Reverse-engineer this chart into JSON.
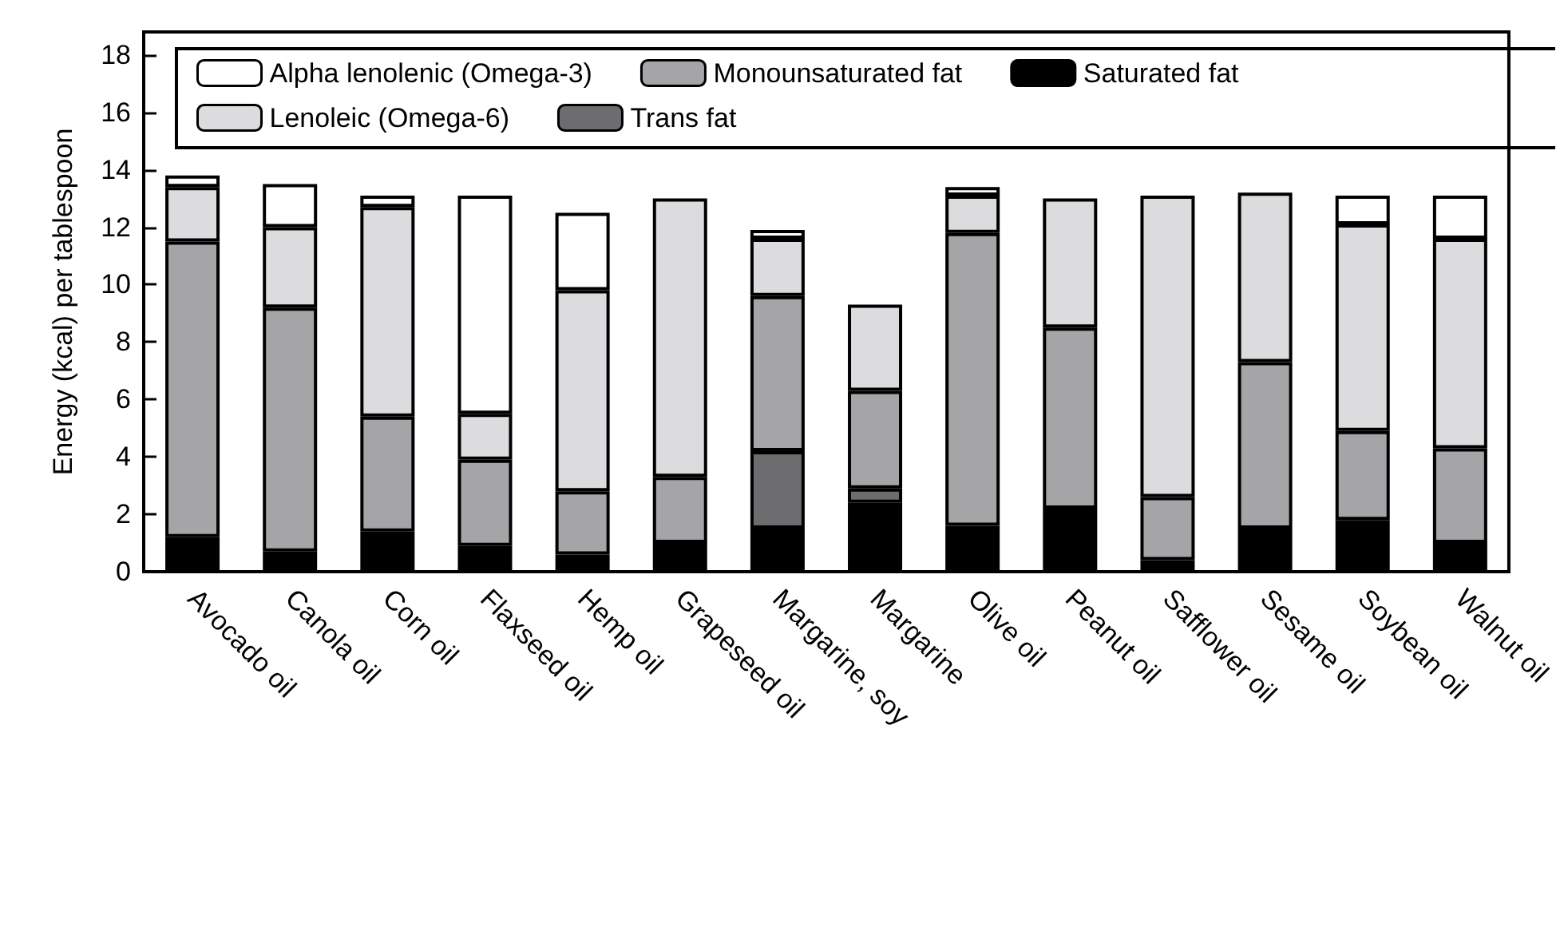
{
  "chart_data": {
    "type": "bar",
    "stacked": true,
    "ylabel": "Energy (kcal) per tablespoon",
    "categories": [
      "Avocado oil",
      "Canola oil",
      "Corn oil",
      "Flaxseed oil",
      "Hemp oil",
      "Grapeseed oil",
      "Margarine, soy",
      "Margarine",
      "Olive oil",
      "Peanut oil",
      "Safflower oil",
      "Sesame oil",
      "Soybean oil",
      "Walnut oil"
    ],
    "series": [
      {
        "name": "Saturated fat",
        "color": "#000000",
        "values": [
          1.2,
          0.7,
          1.4,
          0.9,
          0.6,
          1.0,
          1.5,
          2.4,
          1.6,
          2.2,
          0.4,
          1.5,
          1.8,
          1.0
        ]
      },
      {
        "name": "Trans fat",
        "color": "#6d6d6f",
        "values": [
          null,
          null,
          null,
          null,
          null,
          null,
          2.7,
          0.5,
          null,
          null,
          null,
          null,
          null,
          null
        ]
      },
      {
        "name": "Monounsaturated fat",
        "color": "#a5a5a8",
        "values": [
          10.3,
          8.5,
          4.0,
          3.0,
          2.2,
          2.3,
          5.4,
          3.4,
          10.2,
          6.3,
          2.2,
          5.8,
          3.1,
          3.3
        ]
      },
      {
        "name": "Lenoleic (Omega-6)",
        "color": "#dcdcde",
        "values": [
          1.9,
          2.8,
          7.3,
          1.6,
          7.0,
          9.7,
          2.0,
          3.0,
          1.3,
          4.5,
          10.5,
          5.9,
          7.2,
          7.3
        ]
      },
      {
        "name": "Alpha lenolenic (Omega-3)",
        "color": "#ffffff",
        "values": [
          0.4,
          1.5,
          0.4,
          7.6,
          2.7,
          null,
          0.3,
          null,
          0.3,
          null,
          null,
          null,
          1.0,
          1.5
        ]
      }
    ],
    "ylim": [
      0,
      18.8
    ],
    "yticks": [
      0,
      2,
      4,
      6,
      8,
      10,
      12,
      14,
      16,
      18
    ],
    "grid": false,
    "legend": "top"
  }
}
